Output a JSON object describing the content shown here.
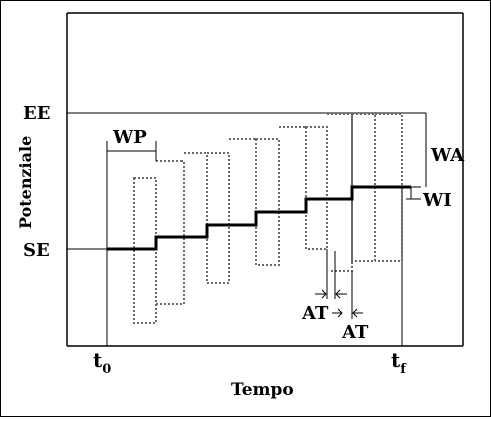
{
  "labels": {
    "ylabel": "Potenziale",
    "xlabel": "Tempo",
    "ee": "EE",
    "se": "SE",
    "wp": "WP",
    "wa": "WA",
    "wi": "WI",
    "at1": "AT",
    "at2": "AT",
    "t0_main": "t",
    "t0_sub": "0",
    "tf_main": "t",
    "tf_sub": "f"
  },
  "colors": {
    "axis": "#000000",
    "staircase": "#000000",
    "pulse_dash": "#6a6a6a"
  }
}
